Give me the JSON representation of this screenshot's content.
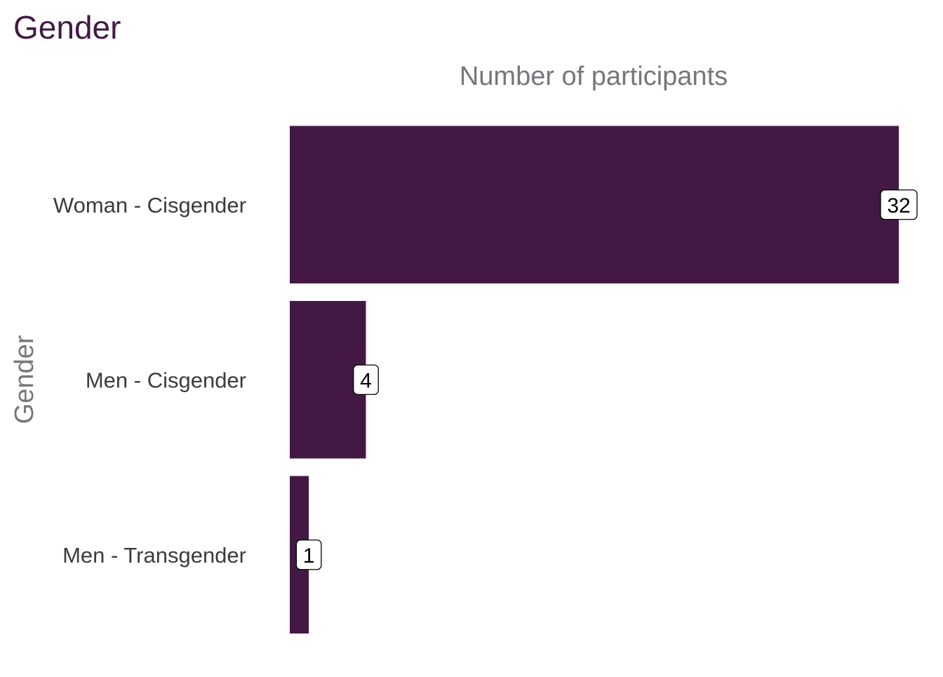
{
  "chart_data": {
    "type": "bar",
    "orientation": "horizontal",
    "title": "Gender",
    "xlabel": "Number of participants",
    "ylabel": "Gender",
    "categories": [
      "Woman - Cisgender",
      "Men - Cisgender",
      "Men - Transgender"
    ],
    "values": [
      32,
      4,
      1
    ],
    "xlim": [
      0,
      32
    ],
    "grid": false,
    "legend": "none",
    "x_axis_position": "top",
    "show_x_tick_labels": false,
    "data_labels": [
      "32",
      "4",
      "1"
    ],
    "colors": {
      "bar": "#431944",
      "title": "#431944",
      "axis_title": "#76777b",
      "tick_label": "#3c3c3c",
      "data_label_text": "#000000",
      "data_label_fill": "#ffffff",
      "data_label_border": "#000000"
    }
  }
}
